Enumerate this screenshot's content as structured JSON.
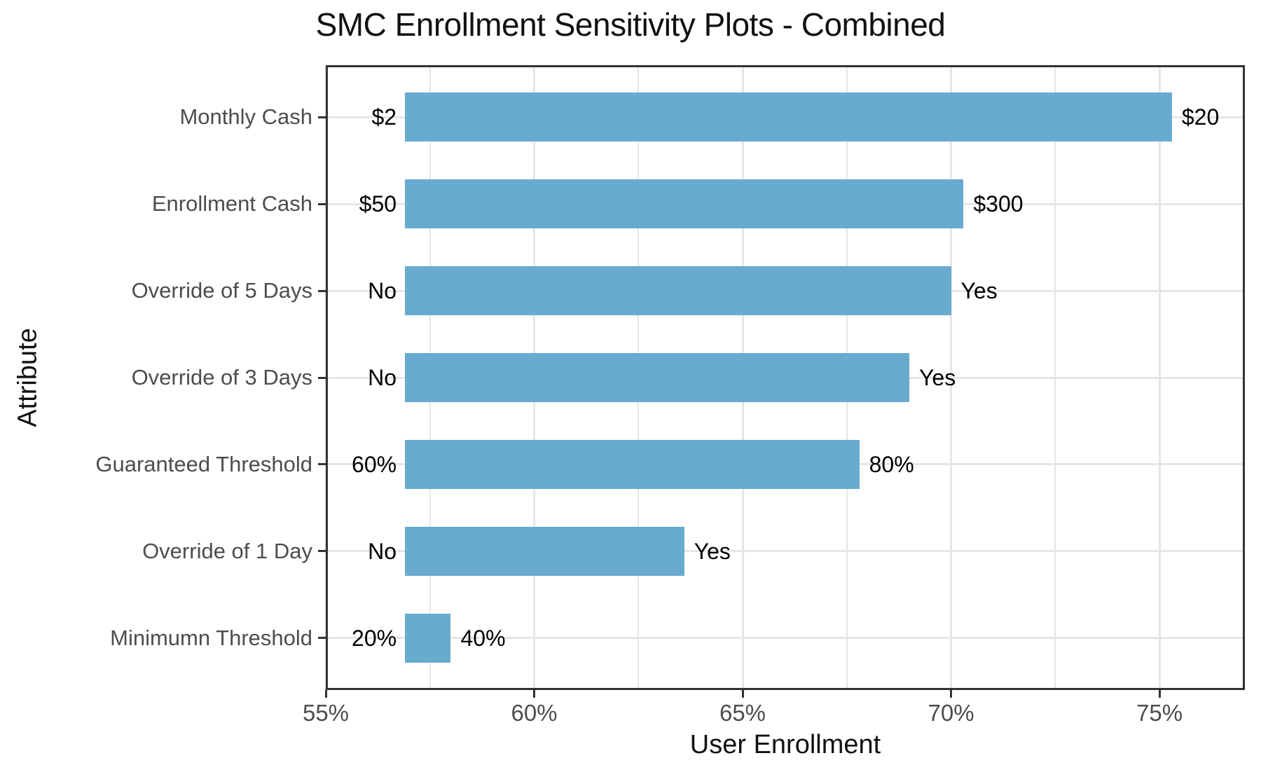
{
  "chart_data": {
    "type": "bar",
    "orientation": "horizontal",
    "title": "SMC Enrollment Sensitivity Plots - Combined",
    "xlabel": "User Enrollment",
    "ylabel": "Attribute",
    "legend": "none",
    "grid": "on",
    "xlim": [
      55,
      77.05
    ],
    "bar_base_value": 56.9,
    "x_ticks": [
      {
        "value": 55,
        "label": "55%"
      },
      {
        "value": 60,
        "label": "60%"
      },
      {
        "value": 65,
        "label": "65%"
      },
      {
        "value": 70,
        "label": "70%"
      },
      {
        "value": 75,
        "label": "75%"
      }
    ],
    "x_minor_gridlines": [
      57.5,
      62.5,
      67.5,
      72.5
    ],
    "bars": [
      {
        "category": "Monthly Cash",
        "low_label": "$2",
        "high_label": "$20",
        "value": 75.3
      },
      {
        "category": "Enrollment Cash",
        "low_label": "$50",
        "high_label": "$300",
        "value": 70.3
      },
      {
        "category": "Override of 5 Days",
        "low_label": "No",
        "high_label": "Yes",
        "value": 70.0
      },
      {
        "category": "Override of 3 Days",
        "low_label": "No",
        "high_label": "Yes",
        "value": 69.0
      },
      {
        "category": "Guaranteed Threshold",
        "low_label": "60%",
        "high_label": "80%",
        "value": 67.8
      },
      {
        "category": "Override of 1 Day",
        "low_label": "No",
        "high_label": "Yes",
        "value": 63.6
      },
      {
        "category": "Minimumn Threshold",
        "low_label": "20%",
        "high_label": "40%",
        "value": 58.0
      }
    ],
    "colors": {
      "bar": "#69aacf",
      "gridline": "#e6e6e6",
      "axis_text": "#4d4d4d",
      "axis_line": "#333333",
      "title_text": "#111111",
      "bar_label_text": "#000000",
      "background": "#ffffff"
    }
  }
}
